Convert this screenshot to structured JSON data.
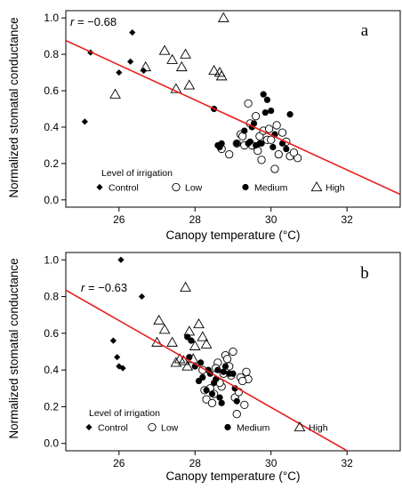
{
  "chart_data": [
    {
      "type": "scatter",
      "panel_label": "a",
      "xlabel": "Canopy temperature (°C)",
      "ylabel": "Normalized stomatal conductance",
      "xlim": [
        24.6,
        33.4
      ],
      "ylim": [
        -0.04,
        1.04
      ],
      "xticks": [
        26,
        28,
        30,
        32
      ],
      "yticks": [
        0.0,
        0.2,
        0.4,
        0.6,
        0.8,
        1.0
      ],
      "xtick_labels": [
        "26",
        "28",
        "30",
        "32"
      ],
      "ytick_labels": [
        "0.0",
        "0.2",
        "0.4",
        "0.6",
        "0.8",
        "1.0"
      ],
      "annotation": {
        "prefix": "r",
        "text": " = −0.68"
      },
      "regression": {
        "color": "#e8201e",
        "x": [
          24.6,
          33.4
        ],
        "y": [
          0.876,
          0.03
        ]
      },
      "legend": {
        "title": "Level of irrigation",
        "placement": "bottom-left"
      },
      "series": [
        {
          "name": "Control",
          "marker": "diamond",
          "x": [
            25.1,
            25.25,
            26.0,
            26.3,
            26.35,
            26.65
          ],
          "y": [
            0.43,
            0.81,
            0.7,
            0.76,
            0.92,
            0.71
          ]
        },
        {
          "name": "Low",
          "marker": "open-circle",
          "x": [
            28.7,
            28.9,
            29.1,
            29.3,
            29.5,
            29.7,
            29.9,
            30.1,
            30.3,
            30.5,
            30.7,
            29.2,
            29.4,
            29.6,
            29.8,
            30.0,
            30.2,
            30.4,
            30.6,
            29.45,
            29.75,
            30.15,
            29.65,
            29.25,
            29.95
          ],
          "y": [
            0.28,
            0.25,
            0.31,
            0.3,
            0.3,
            0.35,
            0.33,
            0.17,
            0.37,
            0.24,
            0.23,
            0.36,
            0.53,
            0.46,
            0.38,
            0.33,
            0.25,
            0.32,
            0.26,
            0.42,
            0.22,
            0.41,
            0.27,
            0.35,
            0.39
          ]
        },
        {
          "name": "Medium",
          "marker": "filled-circle",
          "x": [
            28.5,
            28.6,
            28.7,
            29.1,
            29.3,
            29.4,
            29.5,
            29.6,
            29.7,
            29.8,
            29.9,
            30.0,
            30.1,
            30.3,
            30.4,
            30.5,
            29.45,
            29.85,
            30.05,
            29.75,
            29.55,
            28.65
          ],
          "y": [
            0.5,
            0.3,
            0.31,
            0.31,
            0.38,
            0.31,
            0.4,
            0.3,
            0.31,
            0.58,
            0.55,
            0.49,
            0.36,
            0.31,
            0.28,
            0.47,
            0.32,
            0.48,
            0.29,
            0.31,
            0.42,
            0.29
          ]
        },
        {
          "name": "High",
          "marker": "open-triangle",
          "x": [
            25.9,
            26.7,
            27.2,
            27.4,
            27.5,
            27.65,
            27.75,
            27.85,
            28.5,
            28.65,
            28.7,
            28.75
          ],
          "y": [
            0.58,
            0.73,
            0.82,
            0.77,
            0.61,
            0.73,
            0.8,
            0.63,
            0.71,
            0.7,
            0.68,
            1.0
          ]
        }
      ]
    },
    {
      "type": "scatter",
      "panel_label": "b",
      "xlabel": "Canopy temperature (°C)",
      "ylabel": "Normalized stomatal conductance",
      "xlim": [
        24.6,
        33.4
      ],
      "ylim": [
        -0.04,
        1.04
      ],
      "xticks": [
        26,
        28,
        30,
        32
      ],
      "yticks": [
        0.0,
        0.2,
        0.4,
        0.6,
        0.8,
        1.0
      ],
      "xtick_labels": [
        "26",
        "28",
        "30",
        "32"
      ],
      "ytick_labels": [
        "0.0",
        "0.2",
        "0.4",
        "0.6",
        "0.8",
        "1.0"
      ],
      "annotation": {
        "prefix": "r",
        "text": " = −0.63"
      },
      "regression": {
        "color": "#e8201e",
        "x": [
          24.6,
          32.0
        ],
        "y": [
          0.835,
          -0.04
        ]
      },
      "legend": {
        "title": "Level of irrigation",
        "placement": "bottom-left"
      },
      "series": [
        {
          "name": "Control",
          "marker": "diamond",
          "x": [
            25.85,
            25.95,
            26.0,
            26.1,
            26.05,
            26.6
          ],
          "y": [
            0.56,
            0.47,
            0.42,
            0.41,
            1.0,
            0.8
          ]
        },
        {
          "name": "Low",
          "marker": "open-circle",
          "x": [
            28.2,
            28.4,
            28.6,
            28.8,
            29.0,
            29.2,
            29.4,
            28.3,
            28.5,
            28.7,
            28.9,
            29.1,
            29.3,
            28.25,
            28.45,
            28.65,
            28.85,
            29.05,
            29.25,
            28.75,
            28.55,
            29.15,
            29.35,
            28.95
          ],
          "y": [
            0.4,
            0.3,
            0.44,
            0.48,
            0.5,
            0.36,
            0.35,
            0.24,
            0.27,
            0.31,
            0.42,
            0.16,
            0.21,
            0.29,
            0.22,
            0.33,
            0.46,
            0.25,
            0.34,
            0.38,
            0.41,
            0.28,
            0.39,
            0.37
          ]
        },
        {
          "name": "Medium",
          "marker": "filled-circle",
          "x": [
            27.8,
            27.85,
            27.9,
            28.0,
            28.1,
            28.2,
            28.3,
            28.4,
            28.5,
            28.6,
            28.7,
            28.8,
            28.9,
            29.0,
            29.1,
            28.45,
            28.65,
            28.75,
            28.55,
            28.35,
            29.05,
            28.15
          ],
          "y": [
            0.58,
            0.47,
            0.56,
            0.42,
            0.34,
            0.36,
            0.29,
            0.38,
            0.33,
            0.4,
            0.22,
            0.42,
            0.38,
            0.38,
            0.23,
            0.27,
            0.25,
            0.39,
            0.35,
            0.4,
            0.3,
            0.44
          ]
        },
        {
          "name": "High",
          "marker": "open-triangle",
          "x": [
            27.0,
            27.2,
            27.4,
            27.5,
            27.6,
            27.7,
            27.75,
            27.8,
            27.85,
            27.95,
            28.0,
            28.1,
            28.2,
            28.3,
            27.05
          ],
          "y": [
            0.55,
            0.62,
            0.55,
            0.44,
            0.46,
            0.45,
            0.85,
            0.42,
            0.61,
            0.46,
            0.53,
            0.65,
            0.58,
            0.54,
            0.67
          ]
        }
      ]
    }
  ]
}
